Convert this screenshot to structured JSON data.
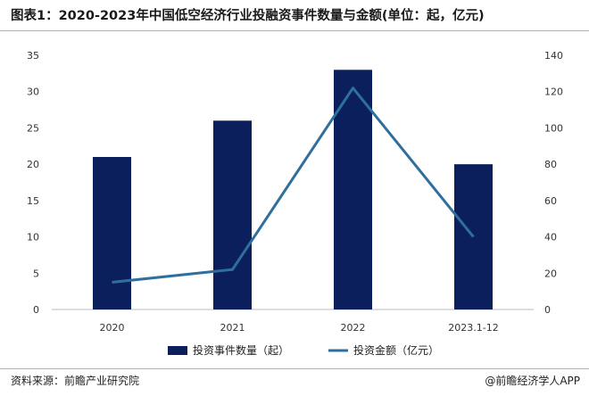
{
  "title": "图表1：2020-2023年中国低空经济行业投融资事件数量与金额(单位：起，亿元)",
  "footer": {
    "source": "资料来源：前瞻产业研究院",
    "brand": "@前瞻经济学人APP"
  },
  "colors": {
    "bar": "#0b1f5c",
    "line": "#2e6f9e"
  },
  "chart_data": {
    "type": "bar",
    "categories": [
      "2020",
      "2021",
      "2022",
      "2023.1-12"
    ],
    "series": [
      {
        "name": "投资事件数量（起）",
        "type": "bar",
        "axis": "left",
        "values": [
          21,
          26,
          33,
          20
        ]
      },
      {
        "name": "投资金额（亿元）",
        "type": "line",
        "axis": "right",
        "values": [
          15,
          22,
          122,
          40
        ]
      }
    ],
    "y_left": {
      "min": 0,
      "max": 35,
      "ticks": [
        0,
        5,
        10,
        15,
        20,
        25,
        30,
        35
      ]
    },
    "y_right": {
      "min": 0,
      "max": 140,
      "ticks": [
        0,
        20,
        40,
        60,
        80,
        100,
        120,
        140
      ]
    },
    "grid": false,
    "legend_position": "bottom"
  }
}
